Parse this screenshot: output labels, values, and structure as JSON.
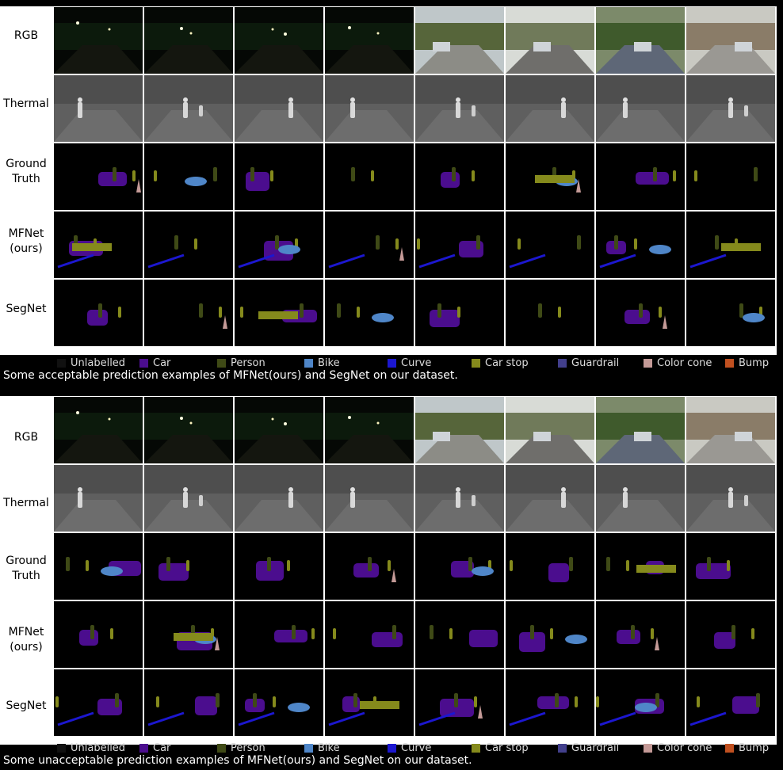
{
  "row_labels": {
    "rgb": "RGB",
    "thermal": "Thermal",
    "ground_truth": [
      "Ground",
      "Truth"
    ],
    "mfnet": [
      "MFNet",
      "(ours)"
    ],
    "segnet": "SegNet"
  },
  "legend": [
    {
      "label": "Unlabelled",
      "color": "#111111"
    },
    {
      "label": "Car",
      "color": "#4b0d8e"
    },
    {
      "label": "Person",
      "color": "#3f4a16"
    },
    {
      "label": "Bike",
      "color": "#4f86c8"
    },
    {
      "label": "Curve",
      "color": "#1c17d0"
    },
    {
      "label": "Car stop",
      "color": "#858a1c"
    },
    {
      "label": "Guardrail",
      "color": "#423f8c"
    },
    {
      "label": "Color cone",
      "color": "#c49a97"
    },
    {
      "label": "Bump",
      "color": "#c05020"
    }
  ],
  "captions": {
    "top": "Some acceptable prediction examples of MFNet(ours) and SegNet on our dataset.",
    "bottom": "Some unacceptable prediction examples of MFNet(ours) and SegNet on our dataset."
  },
  "colors": {
    "background": "#000000",
    "grid_lines": "#ffffff",
    "thermal_gray": "#6a6a6a"
  }
}
